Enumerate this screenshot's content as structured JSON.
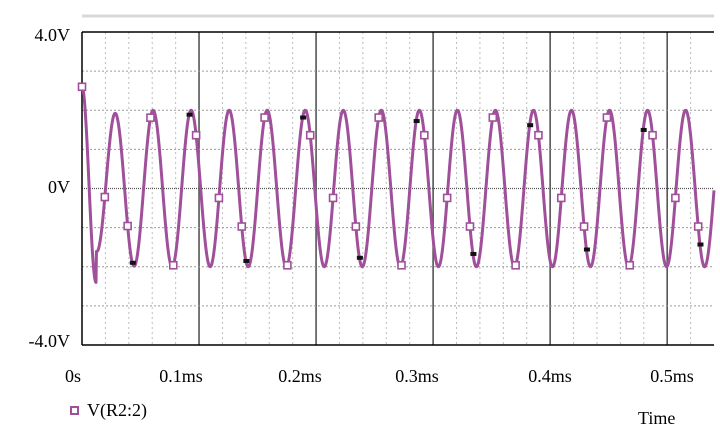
{
  "chart_data": {
    "type": "line",
    "xlabel": "Time",
    "x_ticks": [
      "0s",
      "0.1ms",
      "0.2ms",
      "0.3ms",
      "0.4ms",
      "0.5ms"
    ],
    "y_ticks": [
      "4.0V",
      "0V",
      "-4.0V"
    ],
    "xlim": [
      0,
      0.54
    ],
    "ylim": [
      -4,
      4
    ],
    "grid": true,
    "legend_position": "bottom-left",
    "series": [
      {
        "name": "V(R2:2)",
        "color": "#a0509a",
        "marker": "hollow-square",
        "approx_amplitude_V": 2.0,
        "approx_period_ms": 0.0325,
        "approx_start_V": 2.6,
        "approx_first_min_V": -2.4
      }
    ]
  },
  "legend": {
    "label": "V(R2:2)"
  },
  "axis_title": "Time"
}
